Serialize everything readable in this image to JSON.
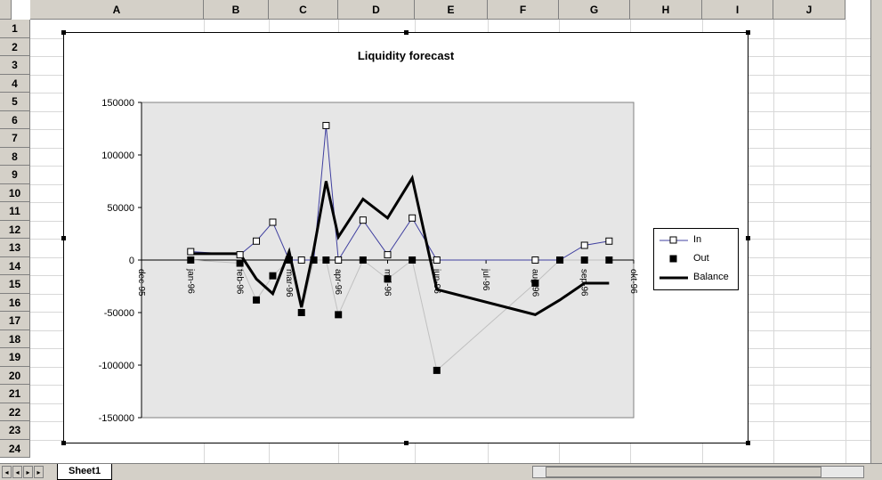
{
  "sheet": {
    "columns": [
      "A",
      "B",
      "C",
      "D",
      "E",
      "F",
      "G",
      "H",
      "I",
      "J"
    ],
    "rows": [
      "1",
      "2",
      "3",
      "4",
      "5",
      "6",
      "7",
      "8",
      "9",
      "10",
      "11",
      "12",
      "13",
      "14",
      "15",
      "16",
      "17",
      "18",
      "19",
      "20",
      "21",
      "22",
      "23",
      "24"
    ],
    "tabs": [
      "Sheet1"
    ],
    "nav_buttons": [
      "first",
      "prev",
      "next",
      "last"
    ]
  },
  "chart_data": {
    "type": "line",
    "title": "Liquidity forecast",
    "ylim": [
      -150000,
      150000
    ],
    "yticks": [
      150000,
      100000,
      50000,
      0,
      -50000,
      -100000,
      -150000
    ],
    "ytick_labels": [
      "150000",
      "100000",
      "50000",
      "0",
      "-50000",
      "-100000",
      "-150000"
    ],
    "xticks": [
      "dec-95",
      "jan-96",
      "feb-96",
      "mar-96",
      "apr-96",
      "mai-96",
      "jun-96",
      "jul-96",
      "aug-96",
      "sep-96",
      "okt-96"
    ],
    "grid": false,
    "legend": "right",
    "x": [
      "jan-96",
      "feb-96",
      "feb-96",
      "feb-96",
      "mar-96",
      "mar-96",
      "mar-96",
      "mar-96",
      "apr-96",
      "apr-96",
      "mai-96",
      "mai-96",
      "jun-96",
      "aug-96",
      "aug-96",
      "sep-96",
      "sep-96"
    ],
    "series": [
      {
        "name": "In",
        "marker": "open-square",
        "color": "#4040a0",
        "values": [
          8000,
          5000,
          18000,
          36000,
          0,
          0,
          0,
          128000,
          0,
          38000,
          5000,
          40000,
          0,
          0,
          0,
          14000,
          18000
        ]
      },
      {
        "name": "Out",
        "marker": "filled-square",
        "color": "#000000",
        "values": [
          0,
          -3000,
          -38000,
          -15000,
          0,
          -50000,
          0,
          0,
          -52000,
          0,
          -18000,
          0,
          -105000,
          -22000,
          0,
          0,
          0
        ]
      },
      {
        "name": "Balance",
        "marker": "none",
        "color": "#000000",
        "values": [
          6000,
          6000,
          -18000,
          -32000,
          8000,
          -45000,
          10000,
          75000,
          22000,
          58000,
          40000,
          78000,
          -28000,
          -52000,
          -38000,
          -22000,
          -22000
        ]
      }
    ]
  }
}
